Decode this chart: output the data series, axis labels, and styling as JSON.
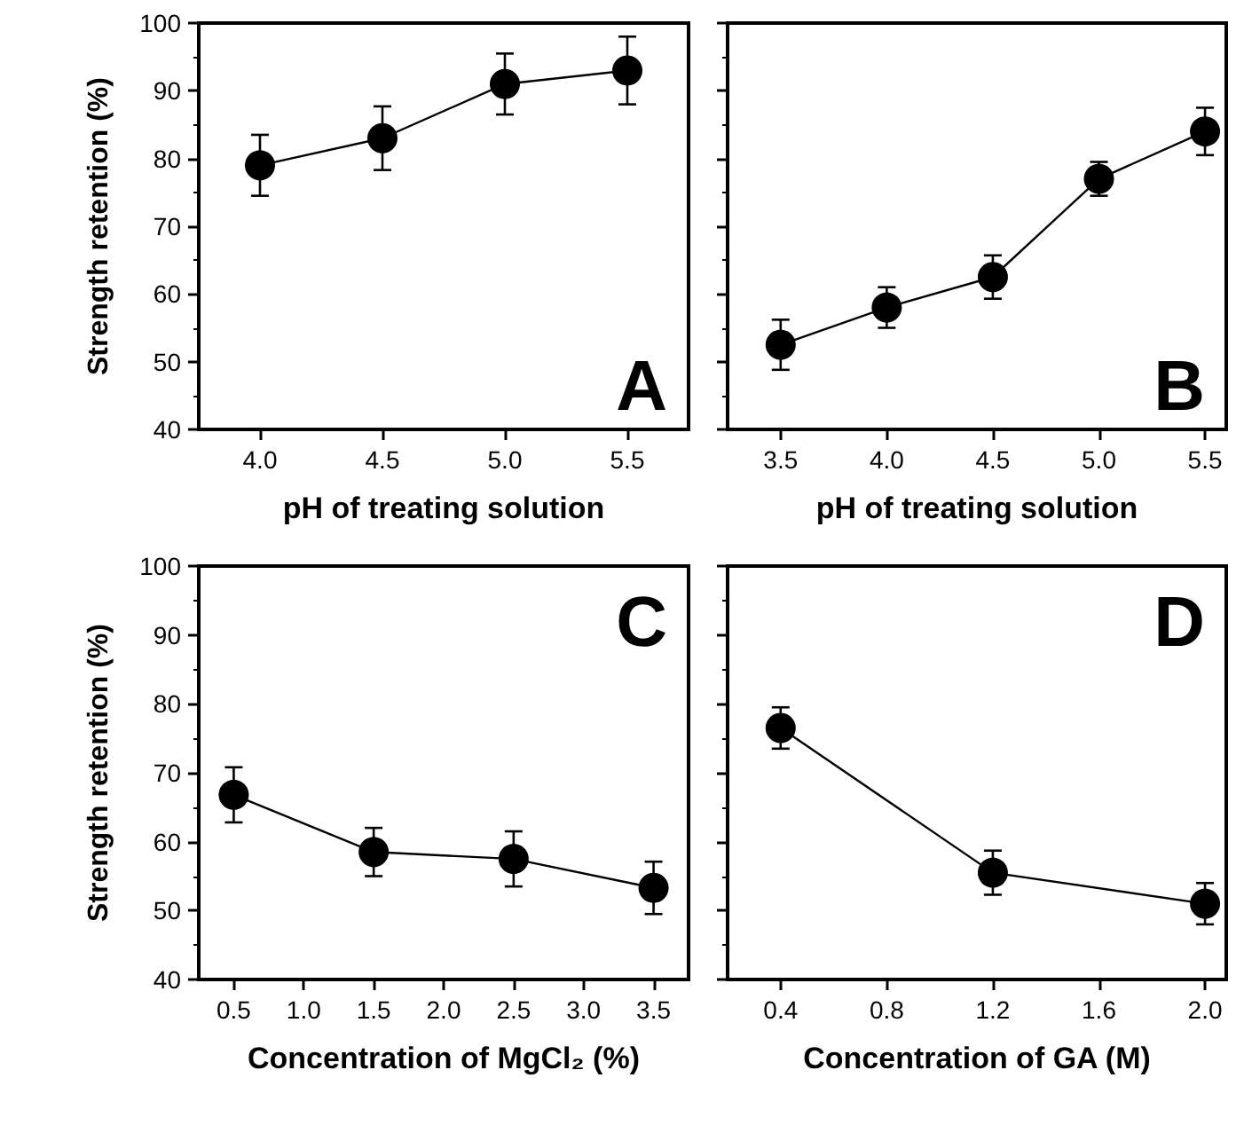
{
  "chart_data": [
    {
      "type": "line",
      "xlabel": "pH of treating solution",
      "ylabel": "Strength retention (%)",
      "annotations": [
        "A"
      ],
      "x": [
        4.0,
        4.5,
        5.0,
        5.5
      ],
      "series": [
        {
          "color": "#000000",
          "values": [
            79,
            83,
            91,
            93
          ],
          "errors": [
            4.5,
            4.7,
            4.5,
            5
          ]
        }
      ],
      "xlim": [
        3.75,
        5.75
      ],
      "xticks": [
        {
          "value": 4,
          "label": "4.0"
        },
        4.5,
        {
          "value": 5,
          "label": "5.0"
        },
        5.5
      ],
      "ylim": [
        40,
        100
      ],
      "yticks": [
        40,
        50,
        60,
        70,
        80,
        90,
        100
      ],
      "marker": "circle"
    },
    {
      "type": "line",
      "xlabel": "pH of treating solution",
      "annotations": [
        "B"
      ],
      "x": [
        3.5,
        4.0,
        4.5,
        5.0,
        5.5
      ],
      "series": [
        {
          "color": "#000000",
          "values": [
            52.5,
            58,
            62.5,
            77,
            84
          ],
          "errors": [
            3.7,
            3,
            3.2,
            2.5,
            3.5
          ]
        }
      ],
      "xlim": [
        3.25,
        5.6
      ],
      "xticks": [
        3.5,
        {
          "value": 4,
          "label": "4.0"
        },
        4.5,
        {
          "value": 5,
          "label": "5.0"
        },
        5.5
      ],
      "ylim": [
        40,
        100
      ],
      "yticks": [
        40,
        50,
        60,
        70,
        80,
        90,
        100
      ],
      "tick_labels": "x",
      "marker": "circle"
    },
    {
      "type": "line",
      "xlabel": "Concentration of MgCl₂ (%)",
      "ylabel": "Strength retention (%)",
      "annotations": [
        "C"
      ],
      "x": [
        0.5,
        1.5,
        2.5,
        3.5
      ],
      "series": [
        {
          "color": "#000000",
          "values": [
            66.8,
            58.5,
            57.5,
            53.3
          ],
          "errors": [
            4,
            3.5,
            4,
            3.8
          ]
        }
      ],
      "xlim": [
        0.25,
        3.75
      ],
      "xticks": [
        0.5,
        {
          "value": 1,
          "label": "1.0"
        },
        1.5,
        {
          "value": 2,
          "label": "2.0"
        },
        2.5,
        {
          "value": 3,
          "label": "3.0"
        },
        3.5
      ],
      "ylim": [
        40,
        100
      ],
      "yticks": [
        40,
        50,
        60,
        70,
        80,
        90,
        100
      ],
      "marker": "circle"
    },
    {
      "type": "line",
      "xlabel": "Concentration of GA (M)",
      "annotations": [
        "D"
      ],
      "x": [
        0.4,
        1.2,
        2.0
      ],
      "series": [
        {
          "color": "#000000",
          "values": [
            76.5,
            55.5,
            51
          ],
          "errors": [
            3,
            3.2,
            3
          ]
        }
      ],
      "xlim": [
        0.2,
        2.08
      ],
      "xticks": [
        0.4,
        0.8,
        1.2,
        1.6,
        {
          "value": 2,
          "label": "2.0"
        }
      ],
      "ylim": [
        40,
        100
      ],
      "yticks": [
        40,
        50,
        60,
        70,
        80,
        90,
        100
      ],
      "tick_labels": "x",
      "marker": "circle"
    }
  ]
}
